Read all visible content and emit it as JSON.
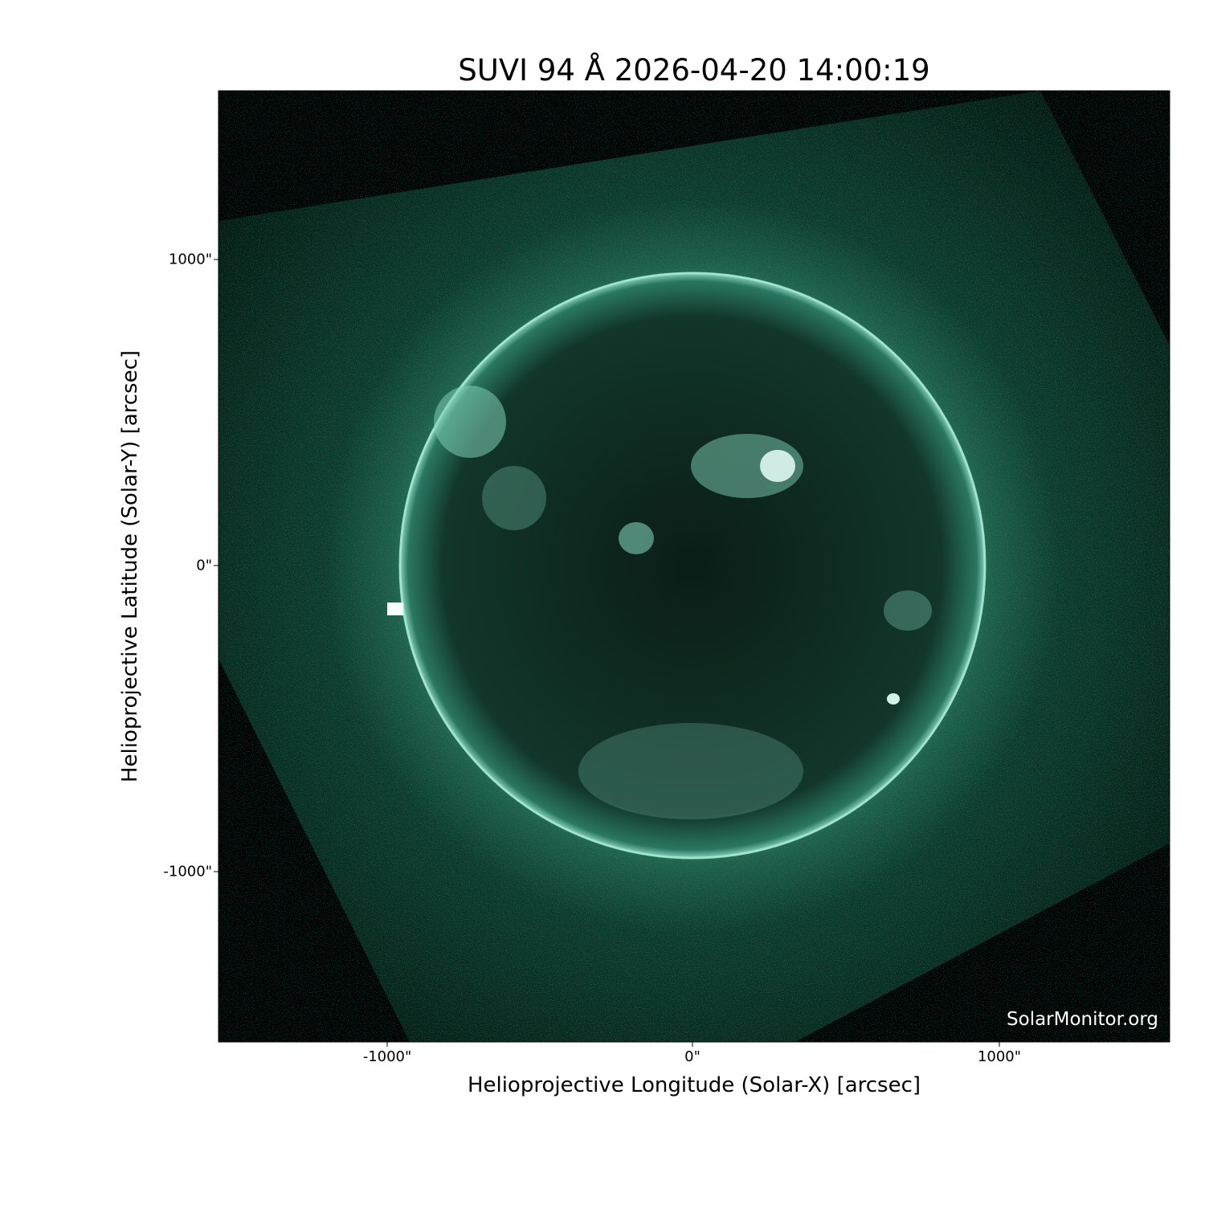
{
  "chart_data": {
    "type": "image",
    "title": "SUVI 94 Å 2026-04-20 14:00:19",
    "xlabel": "Helioprojective Longitude (Solar-X) [arcsec]",
    "ylabel": "Helioprojective Latitude (Solar-Y) [arcsec]",
    "xlim": [
      -1550,
      1550
    ],
    "ylim": [
      -1550,
      1550
    ],
    "xticks": [
      {
        "value": -1000,
        "label": "-1000\""
      },
      {
        "value": 0,
        "label": "0\""
      },
      {
        "value": 1000,
        "label": "1000\""
      }
    ],
    "yticks": [
      {
        "value": 1000,
        "label": "1000\""
      },
      {
        "value": 0,
        "label": "0\""
      },
      {
        "value": -1000,
        "label": "-1000\""
      }
    ],
    "solar_radius_arcsec": 958,
    "colormap": "sdo-94 teal/green",
    "colors": {
      "background": "#000000",
      "corona": "#0b3a2b",
      "limb": "#9fe3cf",
      "bright": "#e8fff8"
    },
    "grid": "heliographic grid lines on disk"
  },
  "watermark": "SolarMonitor.org"
}
